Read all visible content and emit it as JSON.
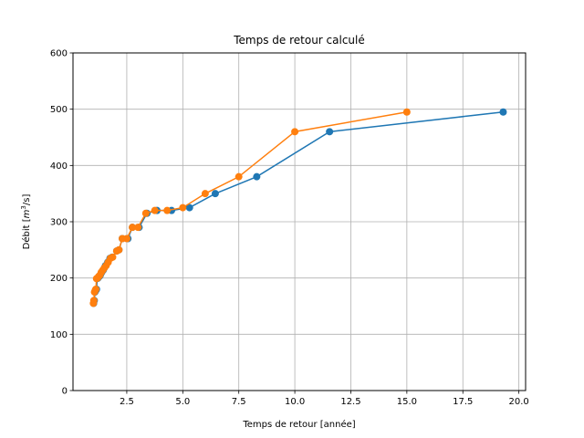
{
  "chart_data": {
    "type": "line",
    "title": "Temps de retour calculé",
    "xlabel": "Temps de retour [année]",
    "ylabel_main": "Débit [",
    "ylabel_unit": "m",
    "ylabel_sup": "3",
    "ylabel_tail": "/s]",
    "xlim": [
      0.1,
      20.3
    ],
    "ylim": [
      0,
      600
    ],
    "xticks": [
      2.5,
      5.0,
      7.5,
      10.0,
      12.5,
      15.0,
      17.5,
      20.0
    ],
    "xtick_labels": [
      "2.5",
      "5.0",
      "7.5",
      "10.0",
      "12.5",
      "15.0",
      "17.5",
      "20.0"
    ],
    "yticks": [
      0,
      100,
      200,
      300,
      400,
      500,
      600
    ],
    "ytick_labels": [
      "0",
      "100",
      "200",
      "300",
      "400",
      "500",
      "600"
    ],
    "grid": true,
    "series": [
      {
        "color": "#1f77b4",
        "points": [
          [
            19.3,
            495
          ],
          [
            11.55,
            460
          ],
          [
            8.3,
            380
          ],
          [
            6.45,
            350
          ],
          [
            5.3,
            325
          ],
          [
            4.5,
            320
          ],
          [
            3.85,
            320
          ],
          [
            3.4,
            315
          ],
          [
            3.05,
            290
          ],
          [
            2.75,
            290
          ],
          [
            2.55,
            270
          ],
          [
            2.3,
            270
          ],
          [
            2.15,
            250
          ],
          [
            2.05,
            248
          ],
          [
            1.85,
            237
          ],
          [
            1.75,
            235
          ],
          [
            1.65,
            228
          ],
          [
            1.55,
            222
          ],
          [
            1.5,
            218
          ],
          [
            1.45,
            214
          ],
          [
            1.38,
            210
          ],
          [
            1.32,
            205
          ],
          [
            1.28,
            203
          ],
          [
            1.22,
            200
          ],
          [
            1.18,
            199
          ],
          [
            1.15,
            180
          ],
          [
            1.12,
            178
          ],
          [
            1.08,
            175
          ],
          [
            1.05,
            160
          ],
          [
            1.02,
            155
          ]
        ]
      },
      {
        "color": "#ff7f0e",
        "points": [
          [
            15.0,
            495
          ],
          [
            10.0,
            460
          ],
          [
            7.5,
            380
          ],
          [
            6.0,
            350
          ],
          [
            5.0,
            325
          ],
          [
            4.3,
            320
          ],
          [
            3.75,
            320
          ],
          [
            3.35,
            315
          ],
          [
            3.0,
            290
          ],
          [
            2.75,
            290
          ],
          [
            2.5,
            270
          ],
          [
            2.3,
            270
          ],
          [
            2.15,
            250
          ],
          [
            2.05,
            248
          ],
          [
            1.87,
            237
          ],
          [
            1.77,
            235
          ],
          [
            1.67,
            228
          ],
          [
            1.58,
            222
          ],
          [
            1.5,
            218
          ],
          [
            1.43,
            214
          ],
          [
            1.36,
            210
          ],
          [
            1.3,
            205
          ],
          [
            1.25,
            203
          ],
          [
            1.2,
            200
          ],
          [
            1.15,
            199
          ],
          [
            1.12,
            180
          ],
          [
            1.09,
            178
          ],
          [
            1.06,
            175
          ],
          [
            1.03,
            160
          ],
          [
            1.01,
            155
          ]
        ]
      }
    ]
  }
}
